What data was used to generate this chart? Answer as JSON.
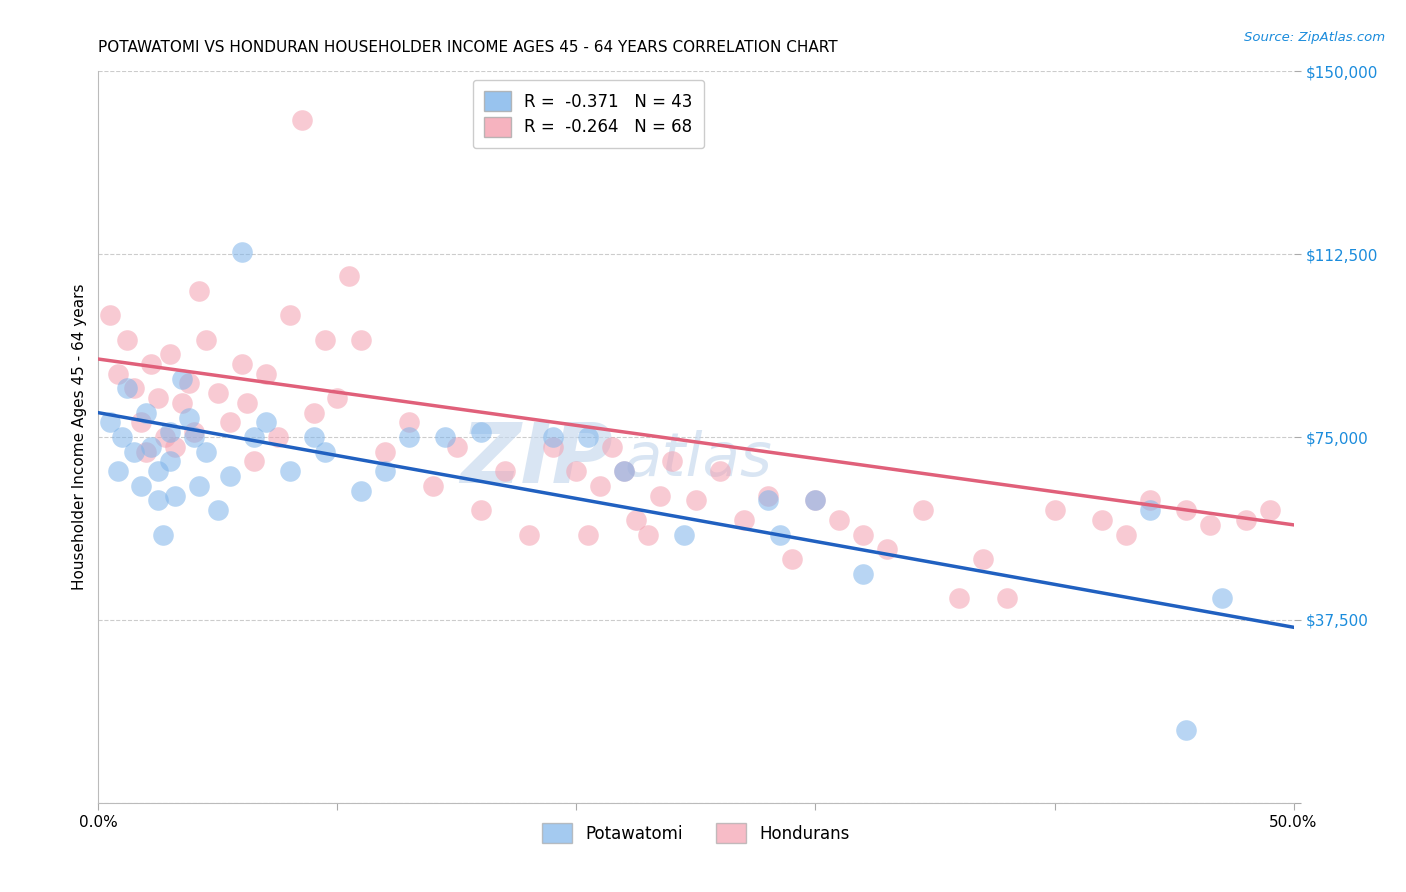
{
  "title": "POTAWATOMI VS HONDURAN HOUSEHOLDER INCOME AGES 45 - 64 YEARS CORRELATION CHART",
  "source": "Source: ZipAtlas.com",
  "ylabel": "Householder Income Ages 45 - 64 years",
  "xmin": 0.0,
  "xmax": 0.5,
  "ymin": 0,
  "ymax": 150000,
  "yticks": [
    0,
    37500,
    75000,
    112500,
    150000
  ],
  "ytick_labels": [
    "",
    "$37,500",
    "$75,000",
    "$112,500",
    "$150,000"
  ],
  "xticks": [
    0.0,
    0.1,
    0.2,
    0.3,
    0.4,
    0.5
  ],
  "xtick_labels": [
    "0.0%",
    "",
    "",
    "",
    "",
    "50.0%"
  ],
  "legend_label_potawatomi": "Potawatomi",
  "legend_label_hondurans": "Hondurans",
  "potawatomi_color": "#7eb4ea",
  "hondurans_color": "#f4a0b0",
  "reg_line_potawatomi_color": "#2060c0",
  "reg_line_hondurans_color": "#e0607a",
  "watermark_zip": "ZIP",
  "watermark_atlas": "atlas",
  "potawatomi_x": [
    0.005,
    0.008,
    0.01,
    0.012,
    0.015,
    0.018,
    0.02,
    0.022,
    0.025,
    0.025,
    0.027,
    0.03,
    0.03,
    0.032,
    0.035,
    0.038,
    0.04,
    0.042,
    0.045,
    0.05,
    0.055,
    0.06,
    0.065,
    0.07,
    0.08,
    0.09,
    0.095,
    0.11,
    0.12,
    0.13,
    0.145,
    0.16,
    0.19,
    0.205,
    0.22,
    0.245,
    0.28,
    0.285,
    0.3,
    0.32,
    0.44,
    0.455,
    0.47
  ],
  "potawatomi_y": [
    78000,
    68000,
    75000,
    85000,
    72000,
    65000,
    80000,
    73000,
    68000,
    62000,
    55000,
    76000,
    70000,
    63000,
    87000,
    79000,
    75000,
    65000,
    72000,
    60000,
    67000,
    113000,
    75000,
    78000,
    68000,
    75000,
    72000,
    64000,
    68000,
    75000,
    75000,
    76000,
    75000,
    75000,
    68000,
    55000,
    62000,
    55000,
    62000,
    47000,
    60000,
    15000,
    42000
  ],
  "hondurans_x": [
    0.005,
    0.008,
    0.012,
    0.015,
    0.018,
    0.02,
    0.022,
    0.025,
    0.028,
    0.03,
    0.032,
    0.035,
    0.038,
    0.04,
    0.042,
    0.045,
    0.05,
    0.055,
    0.06,
    0.062,
    0.065,
    0.07,
    0.075,
    0.08,
    0.085,
    0.09,
    0.095,
    0.1,
    0.105,
    0.11,
    0.12,
    0.13,
    0.14,
    0.15,
    0.16,
    0.17,
    0.18,
    0.19,
    0.2,
    0.205,
    0.21,
    0.215,
    0.22,
    0.225,
    0.23,
    0.235,
    0.24,
    0.25,
    0.26,
    0.27,
    0.28,
    0.29,
    0.3,
    0.31,
    0.32,
    0.33,
    0.345,
    0.36,
    0.37,
    0.38,
    0.4,
    0.42,
    0.43,
    0.44,
    0.455,
    0.465,
    0.48,
    0.49
  ],
  "hondurans_y": [
    100000,
    88000,
    95000,
    85000,
    78000,
    72000,
    90000,
    83000,
    75000,
    92000,
    73000,
    82000,
    86000,
    76000,
    105000,
    95000,
    84000,
    78000,
    90000,
    82000,
    70000,
    88000,
    75000,
    100000,
    140000,
    80000,
    95000,
    83000,
    108000,
    95000,
    72000,
    78000,
    65000,
    73000,
    60000,
    68000,
    55000,
    73000,
    68000,
    55000,
    65000,
    73000,
    68000,
    58000,
    55000,
    63000,
    70000,
    62000,
    68000,
    58000,
    63000,
    50000,
    62000,
    58000,
    55000,
    52000,
    60000,
    42000,
    50000,
    42000,
    60000,
    58000,
    55000,
    62000,
    60000,
    57000,
    58000,
    60000
  ]
}
